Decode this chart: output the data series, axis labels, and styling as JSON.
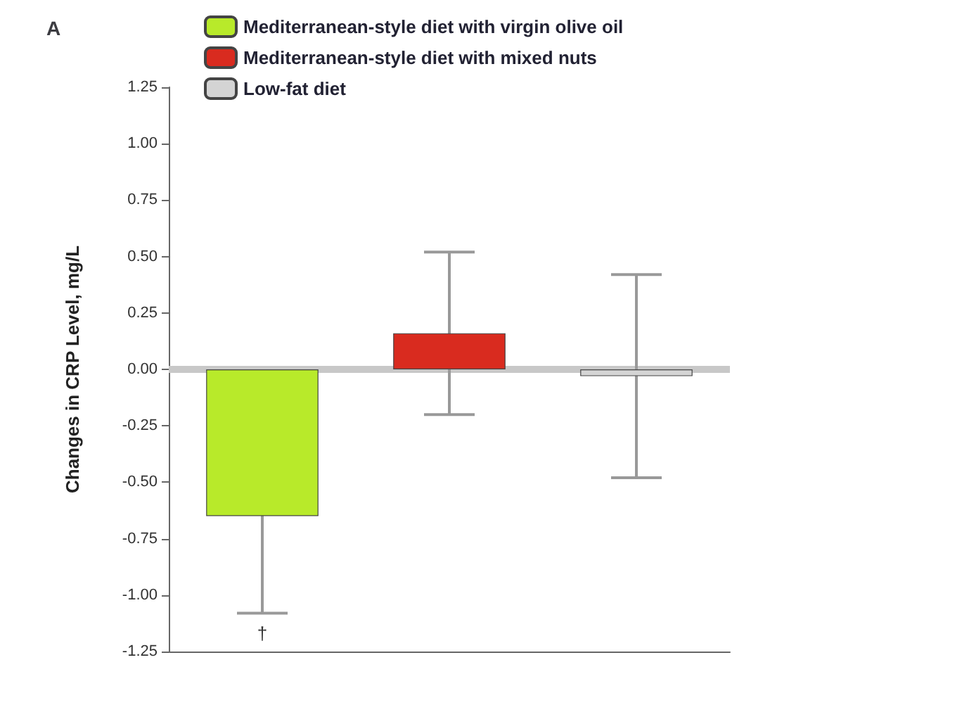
{
  "chart_data": {
    "type": "bar",
    "title": "A",
    "ylabel": "Changes in CRP Level, mg/L",
    "categories": [
      null,
      null,
      null
    ],
    "series": [
      {
        "name": "Mediterranean-style diet with virgin olive oil",
        "color": "#b8ea2a",
        "values": [
          -0.65,
          null,
          null
        ],
        "errors": [
          0.43,
          null,
          null
        ]
      },
      {
        "name": "Mediterranean-style diet with mixed nuts",
        "color": "#d92b1f",
        "values": [
          null,
          0.16,
          null
        ],
        "errors": [
          null,
          0.36,
          null
        ]
      },
      {
        "name": "Low-fat diet",
        "color": "#d4d4d4",
        "values": [
          null,
          null,
          -0.03
        ],
        "errors": [
          null,
          null,
          0.45
        ]
      }
    ],
    "ylim": [
      -1.25,
      1.25
    ],
    "yticks": [
      1.25,
      {
        "value": 1,
        "label": "1.00"
      },
      0.75,
      {
        "value": 0.5,
        "label": "0.50"
      },
      0.25,
      {
        "value": 0,
        "label": "0.00"
      },
      -0.25,
      {
        "value": -0.5,
        "label": "-0.50"
      },
      -0.75,
      {
        "value": -1,
        "label": "-1.00"
      },
      -1.25
    ],
    "ref_lines": [
      {
        "axis": "y",
        "value": 0,
        "color": "#c8c8c8"
      }
    ],
    "annotations": [
      "†"
    ],
    "legend": "top",
    "grid": false
  }
}
